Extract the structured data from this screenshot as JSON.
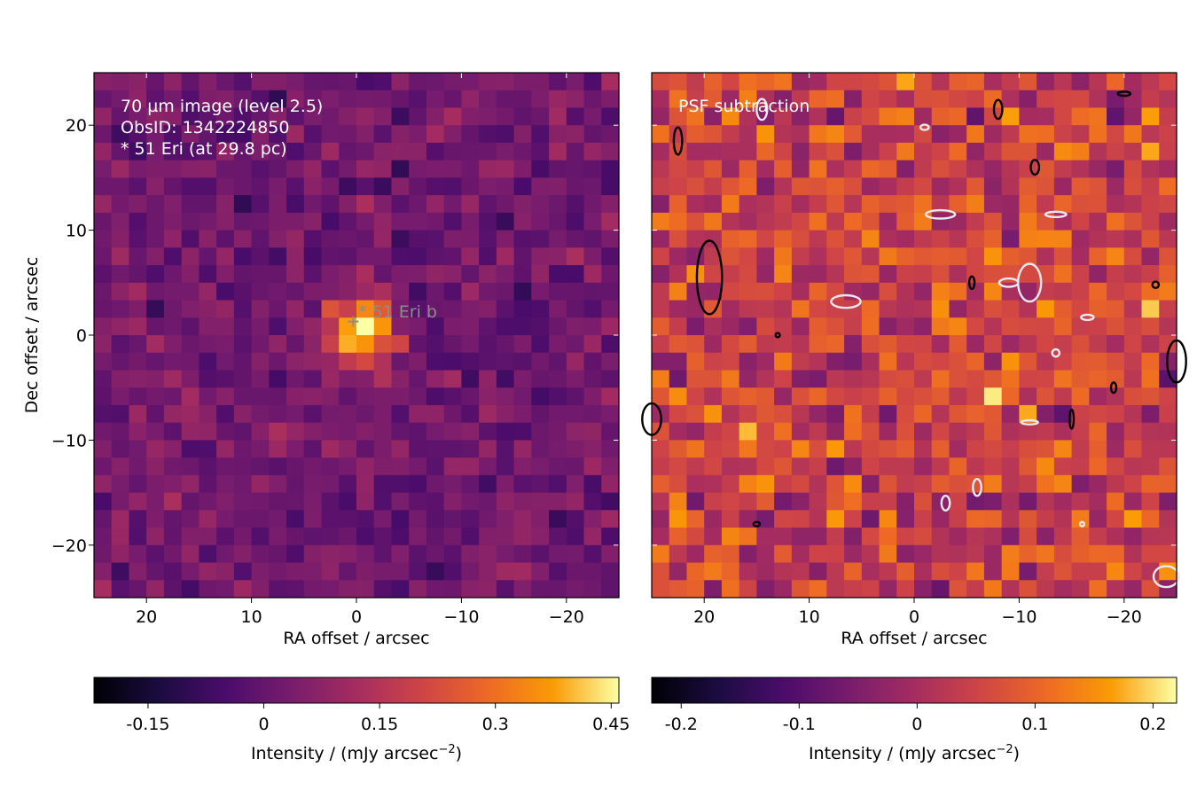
{
  "figure": {
    "ylabel": "Dec offset / arcsec",
    "xlabel": "RA offset / arcsec"
  },
  "chart_data": [
    {
      "type": "heatmap",
      "panel": "left",
      "annotations": [
        "70 µm image (level 2.5)",
        "ObsID: 1342224850",
        "* 51 Eri (at 29.8 pc)"
      ],
      "marker_label": "* 51 Eri b",
      "marker_position": {
        "ra": 0.3,
        "dec": 1.3
      },
      "xlim": [
        25,
        -25
      ],
      "ylim": [
        -25,
        25
      ],
      "xticks": [
        20,
        10,
        0,
        -10,
        -20
      ],
      "xtick_labels": [
        "20",
        "10",
        "0",
        "−10",
        "−20"
      ],
      "yticks": [
        -20,
        -10,
        0,
        10,
        20
      ],
      "ytick_labels": [
        "−20",
        "−10",
        "0",
        "10",
        "20"
      ],
      "grid": false,
      "colormap": "inferno",
      "colorbar": {
        "label": "Intensity / (mJy arcsec",
        "label_exp": "−2",
        "label_end": ")",
        "vmin": -0.22,
        "vmax": 0.46,
        "ticks": [
          -0.15,
          0,
          0.15,
          0.3,
          0.45
        ],
        "tick_labels": [
          "-0.15",
          "0",
          "0.15",
          "0.3",
          "0.45"
        ]
      },
      "peak": {
        "ra": -0.5,
        "dec": 0.5,
        "value": 0.45
      }
    },
    {
      "type": "heatmap",
      "panel": "right",
      "annotations": [
        "PSF subtraction"
      ],
      "xlim": [
        25,
        -25
      ],
      "ylim": [
        -25,
        25
      ],
      "xticks": [
        20,
        10,
        0,
        -10,
        -20
      ],
      "xtick_labels": [
        "20",
        "10",
        "0",
        "−10",
        "−20"
      ],
      "grid": false,
      "colormap": "inferno",
      "contours": [
        "black (positive)",
        "white (negative)"
      ],
      "colorbar": {
        "label": "Intensity / (mJy arcsec",
        "label_exp": "−2",
        "label_end": ")",
        "vmin": -0.225,
        "vmax": 0.22,
        "ticks": [
          -0.2,
          -0.1,
          0,
          0.1,
          0.2
        ],
        "tick_labels": [
          "-0.2",
          "-0.1",
          "0",
          "0.1",
          "0.2"
        ]
      }
    }
  ]
}
